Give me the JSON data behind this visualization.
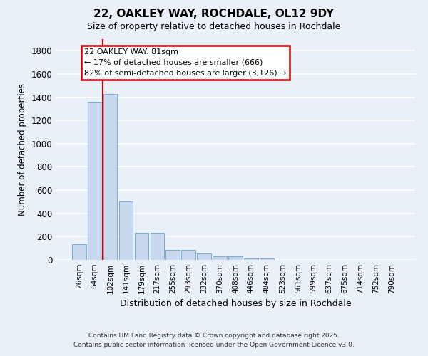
{
  "title": "22, OAKLEY WAY, ROCHDALE, OL12 9DY",
  "subtitle": "Size of property relative to detached houses in Rochdale",
  "xlabel": "Distribution of detached houses by size in Rochdale",
  "ylabel": "Number of detached properties",
  "bar_labels": [
    "26sqm",
    "64sqm",
    "102sqm",
    "141sqm",
    "179sqm",
    "217sqm",
    "255sqm",
    "293sqm",
    "332sqm",
    "370sqm",
    "408sqm",
    "446sqm",
    "484sqm",
    "523sqm",
    "561sqm",
    "599sqm",
    "637sqm",
    "675sqm",
    "714sqm",
    "752sqm",
    "790sqm"
  ],
  "bar_values": [
    135,
    1360,
    1430,
    500,
    230,
    230,
    88,
    88,
    55,
    30,
    30,
    10,
    15,
    0,
    0,
    0,
    0,
    0,
    0,
    0,
    0
  ],
  "bar_color": "#c8d8ef",
  "bar_edgecolor": "#7aabcf",
  "ylim": [
    0,
    1900
  ],
  "yticks": [
    0,
    200,
    400,
    600,
    800,
    1000,
    1200,
    1400,
    1600,
    1800
  ],
  "red_line_x": 1.5,
  "annotation_title": "22 OAKLEY WAY: 81sqm",
  "annotation_line1": "← 17% of detached houses are smaller (666)",
  "annotation_line2": "82% of semi-detached houses are larger (3,126) →",
  "annotation_box_color": "#ffffff",
  "annotation_box_edgecolor": "#cc0000",
  "bg_color": "#eaf0f8",
  "grid_color": "#ffffff",
  "footer_line1": "Contains HM Land Registry data © Crown copyright and database right 2025.",
  "footer_line2": "Contains public sector information licensed under the Open Government Licence v3.0."
}
